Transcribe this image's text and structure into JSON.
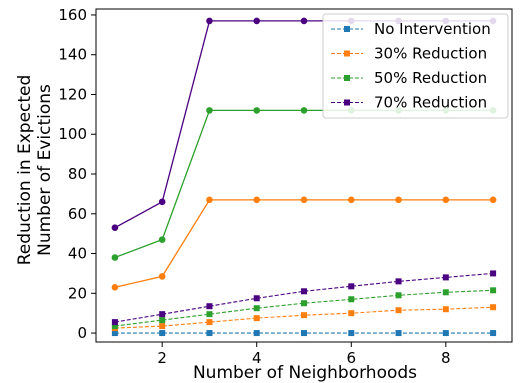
{
  "chart_data": {
    "type": "line",
    "xlabel": "Number of Neighborhoods",
    "ylabel_lines": [
      "Reduction in Expected",
      "Number of Evictions"
    ],
    "xlim": [
      0.6,
      9.4
    ],
    "ylim": [
      -4.5,
      163
    ],
    "xticks": [
      2,
      4,
      6,
      8
    ],
    "yticks": [
      0,
      20,
      40,
      60,
      80,
      100,
      120,
      140,
      160
    ],
    "legend_position": "top-right",
    "x": [
      1,
      2,
      3,
      4,
      5,
      6,
      7,
      8,
      9
    ],
    "series": [
      {
        "name": "No Intervention",
        "style": "dashed",
        "marker": "square",
        "color": "#1f77b4",
        "values": [
          0,
          0,
          0,
          0,
          0,
          0,
          0,
          0,
          0
        ]
      },
      {
        "name": "30% Reduction",
        "style": "dashed",
        "marker": "square",
        "color": "#ff7f0e",
        "values": [
          2.5,
          3.5,
          5.5,
          7.5,
          9,
          10,
          11.5,
          12,
          13
        ]
      },
      {
        "name": "50% Reduction",
        "style": "dashed",
        "marker": "square",
        "color": "#2ca02c",
        "values": [
          3.5,
          6.5,
          9.5,
          12.5,
          15,
          17,
          19,
          20.5,
          21.5
        ]
      },
      {
        "name": "70% Reduction",
        "style": "dashed",
        "marker": "square",
        "color": "#4b0082",
        "values": [
          5.5,
          9.5,
          13.5,
          17.5,
          21,
          23.5,
          26,
          28,
          30
        ]
      },
      {
        "style": "solid",
        "marker": "circle",
        "color": "#ff7f0e",
        "values": [
          23,
          28.5,
          67,
          67,
          67,
          67,
          67,
          67,
          67
        ]
      },
      {
        "style": "solid",
        "marker": "circle",
        "color": "#2ca02c",
        "values": [
          38,
          47,
          112,
          112,
          112,
          112,
          112,
          112,
          112
        ]
      },
      {
        "style": "solid",
        "marker": "circle",
        "color": "#4b0082",
        "values": [
          53,
          66,
          157,
          157,
          157,
          157,
          157,
          157,
          157
        ]
      }
    ]
  }
}
